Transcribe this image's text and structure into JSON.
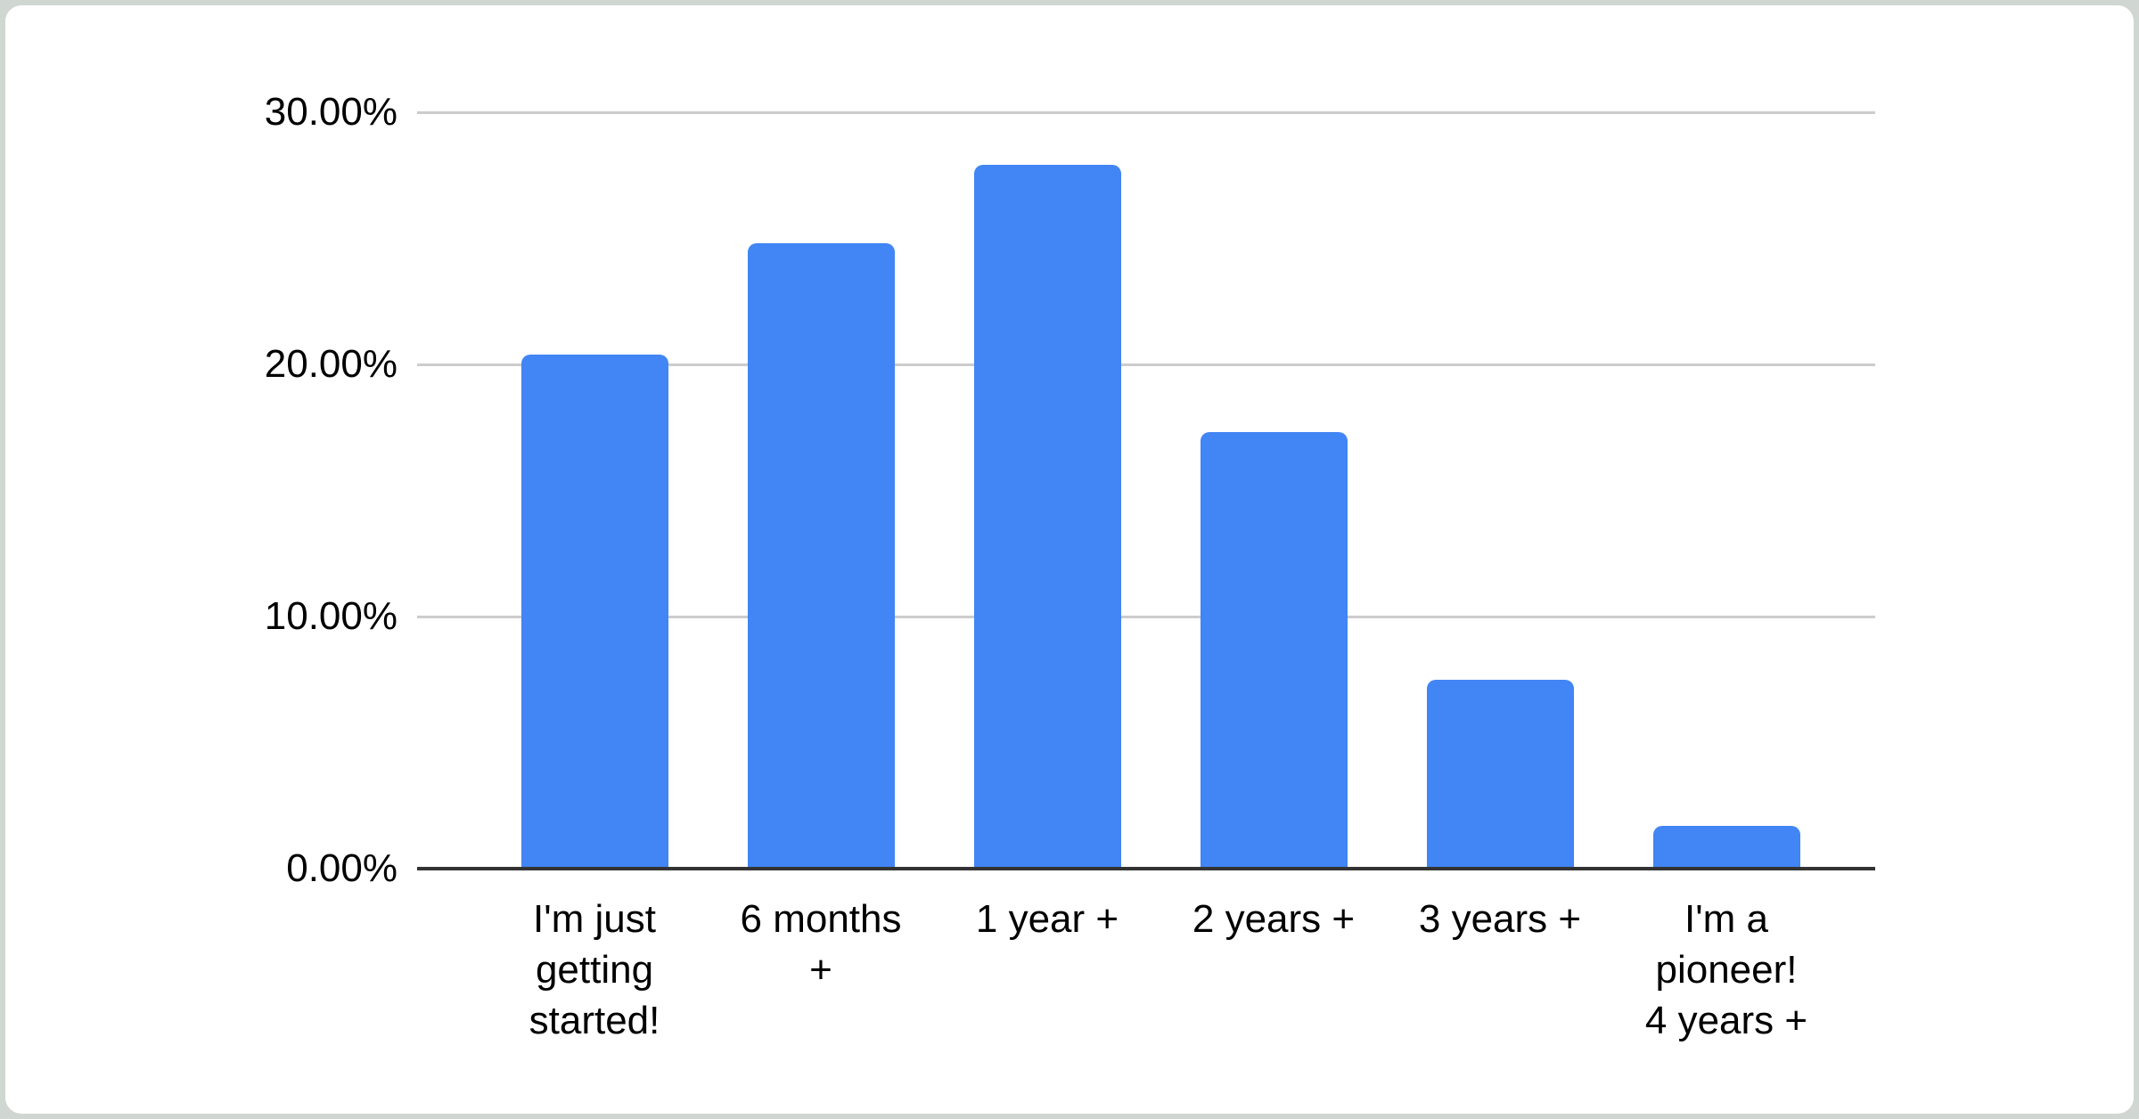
{
  "page": {
    "background_color": "#d0d6d2",
    "card_color": "#ffffff"
  },
  "chart_data": {
    "type": "bar",
    "title": "",
    "xlabel": "",
    "ylabel": "",
    "legend": "none",
    "grid": "horizontal",
    "categories": [
      "I'm just getting started!",
      "6 months +",
      "1 year +",
      "2 years +",
      "3 years +",
      "I'm a pioneer! 4 years +"
    ],
    "category_display_lines": [
      [
        "I'm just",
        "getting",
        "started!"
      ],
      [
        "6 months",
        "+"
      ],
      [
        "1 year +"
      ],
      [
        "2 years +"
      ],
      [
        "3 years +"
      ],
      [
        "I'm a",
        "pioneer!",
        "4 years +"
      ]
    ],
    "values": [
      20.4,
      24.8,
      27.9,
      17.3,
      7.5,
      1.7
    ],
    "unit": "%",
    "ylim": [
      0,
      30
    ],
    "yticks": [
      {
        "label": "30.00%",
        "value": 30
      },
      {
        "label": "20.00%",
        "value": 20
      },
      {
        "label": "10.00%",
        "value": 10
      },
      {
        "label": "0.00%",
        "value": 0
      }
    ],
    "colors": {
      "bar": "#4285f4",
      "gridline": "#cccccc",
      "axis_line": "#333333",
      "label_text": "#000000"
    }
  }
}
